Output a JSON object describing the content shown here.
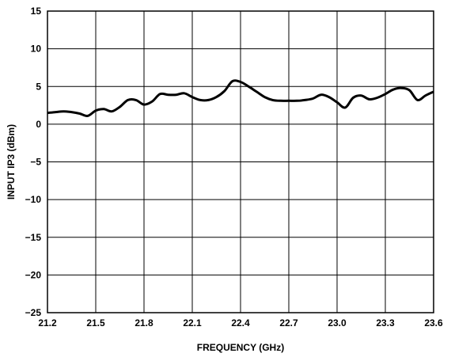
{
  "chart_data": {
    "type": "line",
    "title": "",
    "xlabel": "FREQUENCY (GHz)",
    "ylabel": "INPUT IP3 (dBm)",
    "xlim": [
      21.2,
      23.6
    ],
    "ylim": [
      -25,
      15
    ],
    "x_ticks": [
      "21.2",
      "21.5",
      "21.8",
      "22.1",
      "22.4",
      "22.7",
      "23.0",
      "23.3",
      "23.6"
    ],
    "y_ticks": [
      "15",
      "10",
      "5",
      "0",
      "-5",
      "-10",
      "-15",
      "-20",
      "-25"
    ],
    "grid": true,
    "line_color": "#000000",
    "series": [
      {
        "x": [
          21.2,
          21.25,
          21.3,
          21.35,
          21.4,
          21.45,
          21.5,
          21.55,
          21.6,
          21.65,
          21.7,
          21.75,
          21.8,
          21.85,
          21.9,
          21.95,
          22.0,
          22.05,
          22.1,
          22.15,
          22.2,
          22.25,
          22.3,
          22.35,
          22.4,
          22.45,
          22.5,
          22.55,
          22.6,
          22.65,
          22.7,
          22.75,
          22.8,
          22.85,
          22.9,
          22.95,
          23.0,
          23.05,
          23.1,
          23.15,
          23.2,
          23.25,
          23.3,
          23.35,
          23.4,
          23.45,
          23.5,
          23.55,
          23.6
        ],
        "y": [
          1.5,
          1.6,
          1.7,
          1.6,
          1.4,
          1.1,
          1.8,
          2.0,
          1.7,
          2.3,
          3.2,
          3.2,
          2.6,
          3.0,
          4.0,
          3.9,
          3.9,
          4.1,
          3.6,
          3.2,
          3.2,
          3.6,
          4.4,
          5.7,
          5.6,
          5.0,
          4.3,
          3.6,
          3.2,
          3.1,
          3.1,
          3.1,
          3.2,
          3.4,
          3.9,
          3.6,
          2.9,
          2.2,
          3.5,
          3.8,
          3.3,
          3.5,
          4.0,
          4.6,
          4.8,
          4.5,
          3.2,
          3.8,
          4.3
        ]
      }
    ]
  }
}
